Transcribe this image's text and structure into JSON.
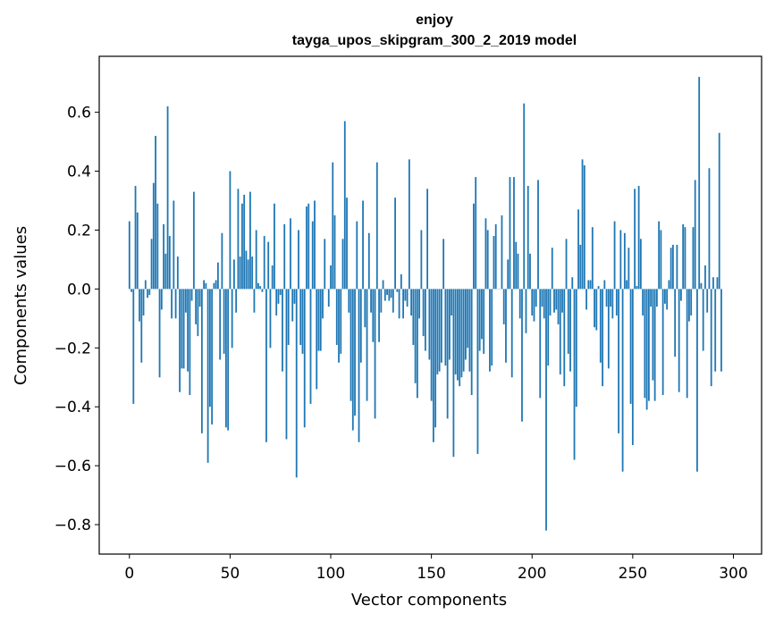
{
  "chart_data": {
    "type": "bar",
    "title": "enjoy",
    "subtitle": "tayga_upos_skipgram_300_2_2019 model",
    "xlabel": "Vector components",
    "ylabel": "Components values",
    "xlim": [
      -15,
      314
    ],
    "ylim": [
      -0.9,
      0.79
    ],
    "x_ticks": [
      0,
      50,
      100,
      150,
      200,
      250,
      300
    ],
    "x_tick_labels": [
      "0",
      "50",
      "100",
      "150",
      "200",
      "250",
      "300"
    ],
    "y_ticks": [
      -0.8,
      -0.6,
      -0.4,
      -0.2,
      0.0,
      0.2,
      0.4,
      0.6
    ],
    "y_tick_labels": [
      "−0.8",
      "−0.6",
      "−0.4",
      "−0.2",
      "0.0",
      "0.2",
      "0.4",
      "0.6"
    ],
    "bar_color": "#1f77b4",
    "grid": false,
    "legend": "none",
    "values": [
      0.23,
      -0.01,
      -0.39,
      0.35,
      0.26,
      -0.11,
      -0.25,
      -0.09,
      0.03,
      -0.03,
      -0.02,
      0.17,
      0.36,
      0.52,
      0.29,
      -0.3,
      -0.07,
      0.22,
      0.12,
      0.62,
      0.18,
      -0.1,
      0.3,
      -0.1,
      0.11,
      -0.35,
      -0.27,
      -0.27,
      -0.08,
      -0.28,
      -0.36,
      -0.04,
      0.33,
      -0.12,
      -0.16,
      -0.06,
      -0.49,
      0.03,
      0.02,
      -0.59,
      -0.4,
      -0.46,
      0.02,
      0.03,
      0.09,
      -0.24,
      0.19,
      -0.22,
      -0.47,
      -0.48,
      0.4,
      -0.2,
      0.1,
      -0.08,
      0.34,
      0.11,
      0.29,
      0.32,
      0.13,
      0.1,
      0.33,
      0.11,
      -0.08,
      0.2,
      0.02,
      0.01,
      -0.01,
      0.18,
      -0.52,
      0.16,
      -0.2,
      0.08,
      0.29,
      -0.09,
      -0.05,
      -0.02,
      -0.28,
      0.22,
      -0.51,
      -0.19,
      0.24,
      -0.11,
      -0.05,
      -0.64,
      0.2,
      -0.19,
      -0.22,
      -0.47,
      0.28,
      0.29,
      -0.39,
      0.23,
      0.3,
      -0.34,
      -0.21,
      -0.21,
      -0.1,
      0.17,
      0.0,
      -0.06,
      0.08,
      0.43,
      0.25,
      -0.19,
      -0.25,
      -0.22,
      0.17,
      0.57,
      0.31,
      -0.08,
      -0.38,
      -0.48,
      -0.43,
      0.23,
      -0.52,
      -0.25,
      0.3,
      -0.13,
      -0.38,
      0.19,
      -0.08,
      -0.18,
      -0.44,
      0.43,
      -0.18,
      -0.08,
      0.03,
      -0.04,
      -0.02,
      -0.04,
      -0.03,
      -0.08,
      0.31,
      -0.01,
      -0.1,
      0.05,
      -0.1,
      -0.04,
      -0.06,
      0.44,
      -0.09,
      -0.19,
      -0.32,
      -0.37,
      -0.1,
      0.2,
      -0.16,
      -0.21,
      0.34,
      -0.24,
      -0.38,
      -0.52,
      -0.47,
      -0.29,
      -0.28,
      -0.25,
      0.17,
      -0.26,
      -0.44,
      -0.24,
      -0.09,
      -0.57,
      -0.29,
      -0.31,
      -0.33,
      -0.3,
      -0.28,
      -0.24,
      -0.2,
      -0.28,
      -0.36,
      0.29,
      0.38,
      -0.56,
      -0.21,
      -0.17,
      -0.22,
      0.24,
      0.2,
      -0.28,
      -0.26,
      0.18,
      0.22,
      0.0,
      0.0,
      0.25,
      -0.12,
      -0.25,
      0.1,
      0.38,
      -0.3,
      0.38,
      0.16,
      0.12,
      -0.1,
      -0.45,
      0.63,
      -0.15,
      0.35,
      0.12,
      -0.09,
      -0.11,
      -0.06,
      0.37,
      -0.37,
      -0.06,
      -0.1,
      -0.82,
      -0.26,
      -0.09,
      0.14,
      -0.08,
      -0.07,
      -0.12,
      -0.29,
      -0.08,
      -0.33,
      0.17,
      -0.22,
      -0.28,
      0.04,
      -0.58,
      -0.4,
      0.27,
      0.15,
      0.44,
      0.42,
      -0.07,
      0.03,
      0.03,
      0.21,
      -0.13,
      -0.14,
      0.01,
      -0.25,
      -0.33,
      0.03,
      -0.06,
      -0.27,
      -0.06,
      -0.1,
      0.23,
      -0.09,
      -0.49,
      0.2,
      -0.62,
      0.19,
      0.03,
      0.14,
      -0.39,
      -0.53,
      0.34,
      0.01,
      0.35,
      0.17,
      -0.09,
      -0.37,
      -0.41,
      -0.38,
      -0.06,
      -0.31,
      -0.38,
      -0.06,
      0.23,
      0.2,
      -0.36,
      -0.05,
      -0.07,
      0.03,
      0.14,
      0.15,
      -0.23,
      0.15,
      -0.35,
      -0.04,
      0.22,
      0.21,
      -0.37,
      -0.11,
      -0.09,
      0.21,
      0.37,
      -0.62,
      0.72,
      0.02,
      -0.21,
      0.08,
      -0.08,
      0.41,
      -0.33,
      0.04,
      -0.28,
      0.04,
      0.53,
      -0.28
    ]
  }
}
